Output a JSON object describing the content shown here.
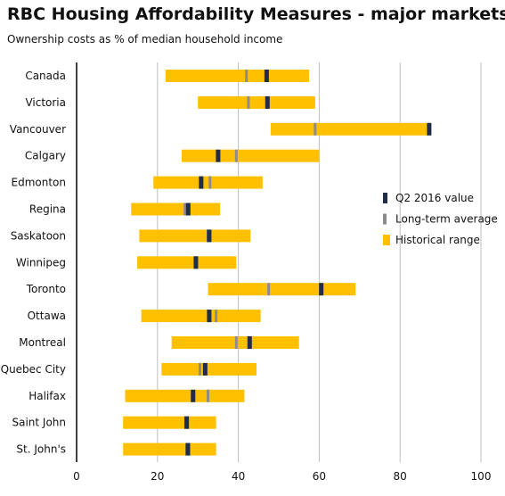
{
  "chart_data": {
    "type": "range-bar",
    "title": "RBC Housing Affordability Measures - major markets",
    "subtitle": "Ownership costs as % of median household income",
    "xlim": [
      0,
      100
    ],
    "xticks": [
      0,
      20,
      40,
      60,
      80,
      100
    ],
    "grid": "vertical",
    "legend_position": "right",
    "colors": {
      "range": "#FFC000",
      "current": "#1F2D4A",
      "average": "#8C8C8C",
      "grid": "#BFBFBF",
      "axis": "#000000"
    },
    "series": [
      {
        "key": "current",
        "name": "Q2 2016 value"
      },
      {
        "key": "average",
        "name": "Long-term average"
      },
      {
        "key": "range",
        "name": "Historical range"
      }
    ],
    "categories": [
      {
        "name": "Canada",
        "min": 22,
        "max": 57.5,
        "avg": 42,
        "current": 47
      },
      {
        "name": "Victoria",
        "min": 30,
        "max": 59,
        "avg": 42.5,
        "current": 47.2
      },
      {
        "name": "Vancouver",
        "min": 48,
        "max": 87.5,
        "avg": 59,
        "current": 87.2
      },
      {
        "name": "Calgary",
        "min": 26,
        "max": 60,
        "avg": 39.5,
        "current": 35
      },
      {
        "name": "Edmonton",
        "min": 19,
        "max": 46,
        "avg": 33,
        "current": 30.8
      },
      {
        "name": "Regina",
        "min": 13.5,
        "max": 35.5,
        "avg": 26.8,
        "current": 27.6
      },
      {
        "name": "Saskatoon",
        "min": 15.5,
        "max": 43,
        "avg": 32.5,
        "current": 32.8
      },
      {
        "name": "Winnipeg",
        "min": 15,
        "max": 39.5,
        "avg": 29.5,
        "current": 29.5
      },
      {
        "name": "Toronto",
        "min": 32.5,
        "max": 69,
        "avg": 47.5,
        "current": 60.5
      },
      {
        "name": "Ottawa",
        "min": 16,
        "max": 45.5,
        "avg": 34.5,
        "current": 32.8
      },
      {
        "name": "Montreal",
        "min": 23.5,
        "max": 55,
        "avg": 39.5,
        "current": 42.8
      },
      {
        "name": "Quebec City",
        "min": 21,
        "max": 44.5,
        "avg": 30.5,
        "current": 31.8
      },
      {
        "name": "Halifax",
        "min": 12,
        "max": 41.5,
        "avg": 32.5,
        "current": 28.8
      },
      {
        "name": "Saint John",
        "min": 11.5,
        "max": 34.5,
        "avg": 27.5,
        "current": 27.2
      },
      {
        "name": "St. John's",
        "min": 11.5,
        "max": 34.5,
        "avg": 27.8,
        "current": 27.5
      }
    ]
  }
}
